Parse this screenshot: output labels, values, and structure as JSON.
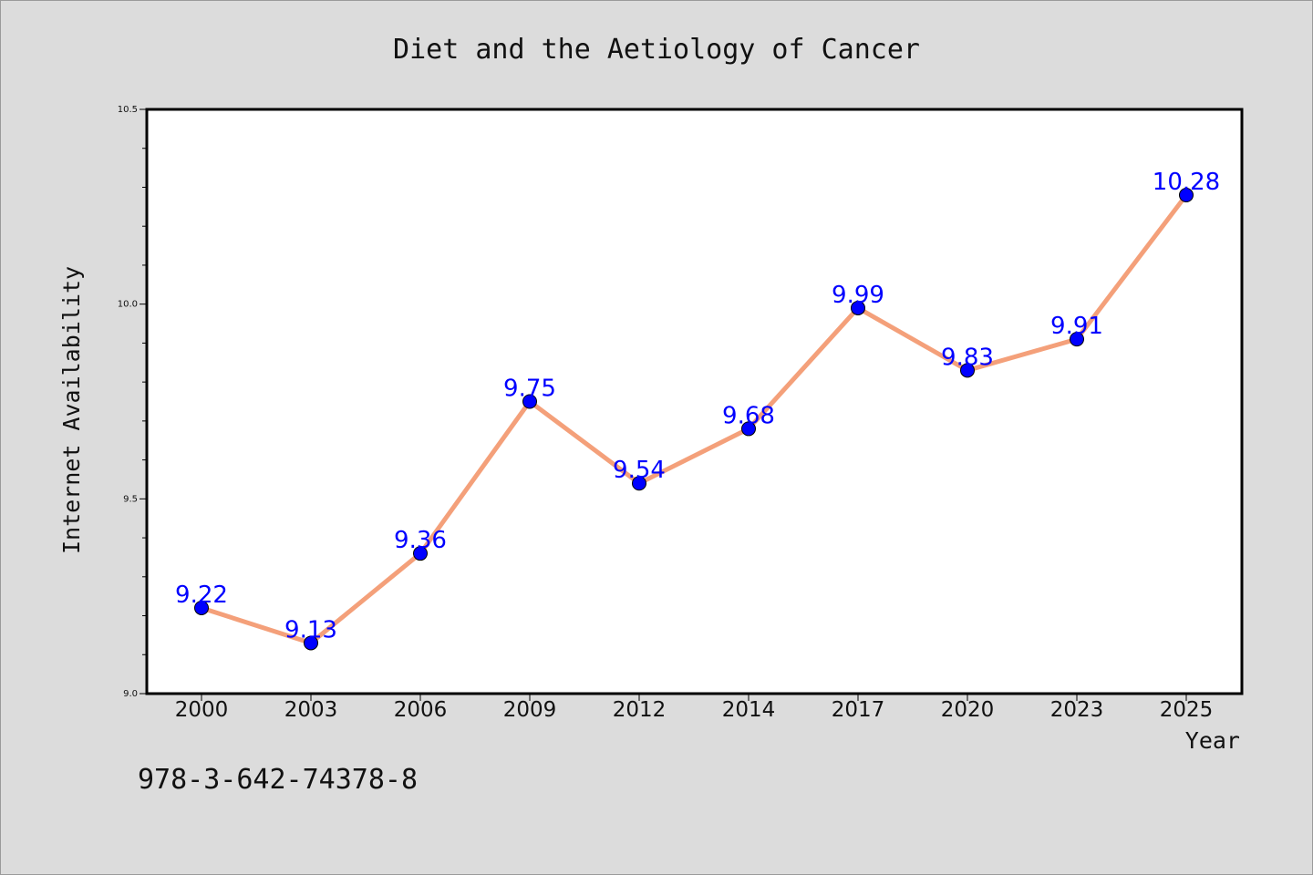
{
  "chart_data": {
    "type": "line",
    "title": "Diet and the Aetiology of Cancer",
    "xlabel": "Year",
    "ylabel": "Internet Availability",
    "categories": [
      "2000",
      "2003",
      "2006",
      "2009",
      "2012",
      "2014",
      "2017",
      "2020",
      "2023",
      "2025"
    ],
    "series": [
      {
        "values": [
          9.22,
          9.13,
          9.36,
          9.75,
          9.54,
          9.68,
          9.99,
          9.83,
          9.91,
          10.28
        ],
        "line_color": "#f4a07a",
        "marker_color": "#0000ff"
      }
    ],
    "data_labels": [
      "9.22",
      "9.13",
      "9.36",
      "9.75",
      "9.54",
      "9.68",
      "9.99",
      "9.83",
      "9.91",
      "10.28"
    ],
    "ylim": [
      9.0,
      10.5
    ],
    "yticks": [
      "9.0",
      "9.5",
      "10.0",
      "10.5"
    ],
    "grid": false,
    "label_color": "#0000ff"
  },
  "footnote": "978-3-642-74378-8",
  "background_color": "#dcdcdc"
}
